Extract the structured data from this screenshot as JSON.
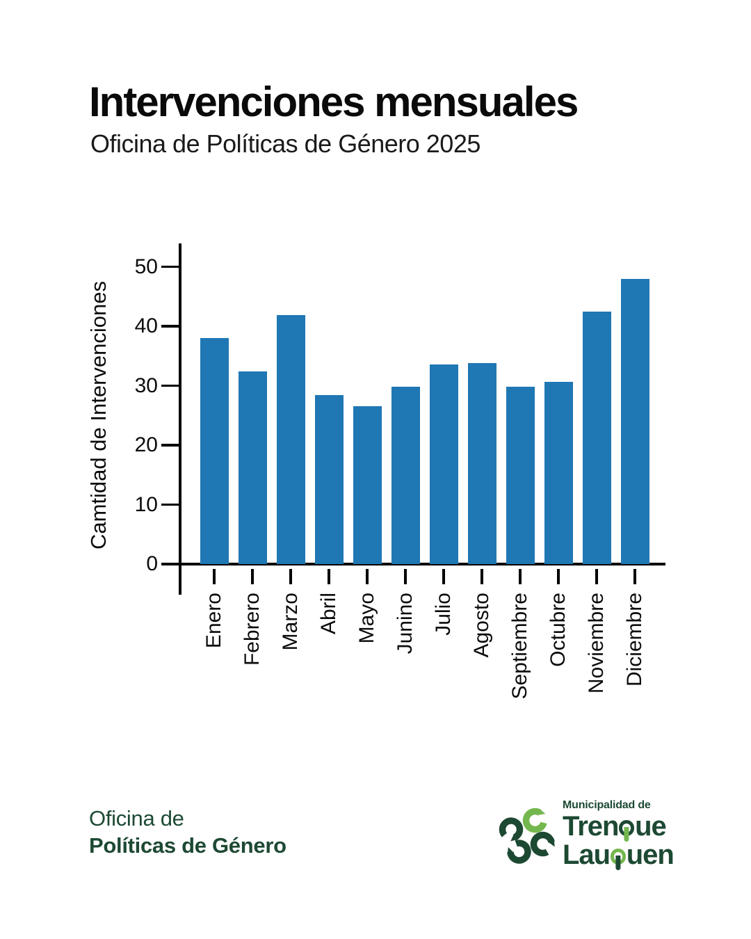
{
  "chart_data": {
    "type": "bar",
    "title": "Intervenciones mensuales",
    "subtitle": "Oficina de Políticas de Género 2025",
    "ylabel": "Camtidad de Intervenciones",
    "xlabel": "",
    "categories": [
      "Enero",
      "Febrero",
      "Marzo",
      "Abril",
      "Mayo",
      "Junino",
      "Julio",
      "Agosto",
      "Septiembre",
      "Octubre",
      "Noviembre",
      "Diciembre"
    ],
    "values": [
      38,
      32.4,
      41.9,
      28.4,
      26.6,
      29.8,
      33.6,
      33.8,
      29.8,
      30.7,
      42.5,
      48
    ],
    "yticks": [
      0,
      10,
      20,
      30,
      40,
      50
    ],
    "ylim": [
      0,
      53
    ],
    "grid": false,
    "legend": "none",
    "xtick_rotation": 90,
    "bar_color": "#1f77b4",
    "axis_color": "#000000",
    "text_color": "#0c0c0c"
  },
  "footer": {
    "office_line1": "Oficina de",
    "office_line2": "Políticas de Género",
    "logo": {
      "tagline": "Municipalidad de",
      "city_line1": "Trenque",
      "city_line2": "Lauquen"
    },
    "colors": {
      "dark_green": "#1d4933",
      "light_green": "#74b74e"
    }
  }
}
